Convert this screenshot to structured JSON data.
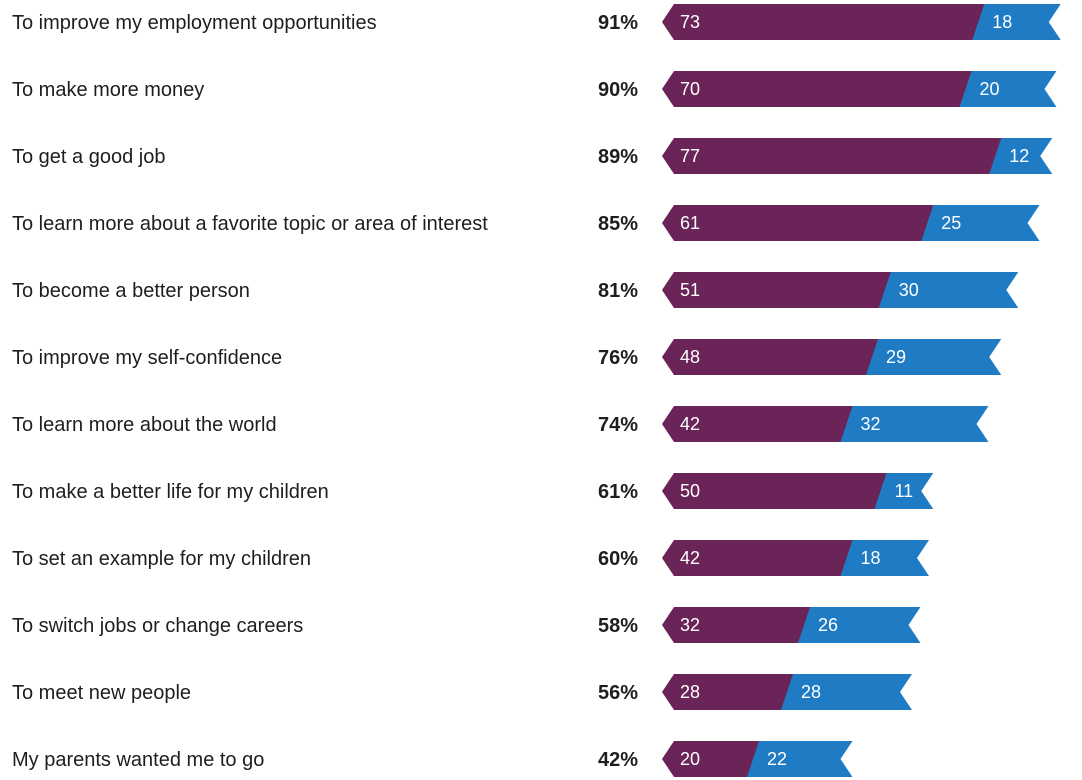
{
  "chart_data": {
    "type": "bar",
    "orientation": "horizontal",
    "stacked": true,
    "categories": [
      "To improve my employment opportunities",
      "To make more money",
      "To get a good job",
      "To learn more about a favorite topic or area of interest",
      "To become a better person",
      "To improve my self-confidence",
      "To learn more about the world",
      "To make a better life for my children",
      "To set an example for my children",
      "To switch jobs or change careers",
      "To meet new people",
      "My parents wanted me to go"
    ],
    "totals": [
      "91%",
      "90%",
      "89%",
      "85%",
      "81%",
      "76%",
      "74%",
      "61%",
      "60%",
      "58%",
      "56%",
      "42%"
    ],
    "series": [
      {
        "values": [
          73,
          70,
          77,
          61,
          51,
          48,
          42,
          50,
          42,
          32,
          28,
          20
        ],
        "color": "#6b2458"
      },
      {
        "values": [
          18,
          20,
          12,
          25,
          30,
          29,
          32,
          11,
          18,
          26,
          28,
          22
        ],
        "color": "#1e7bc4"
      }
    ],
    "xlim": [
      0,
      100
    ],
    "grid": false,
    "legend": "none"
  }
}
